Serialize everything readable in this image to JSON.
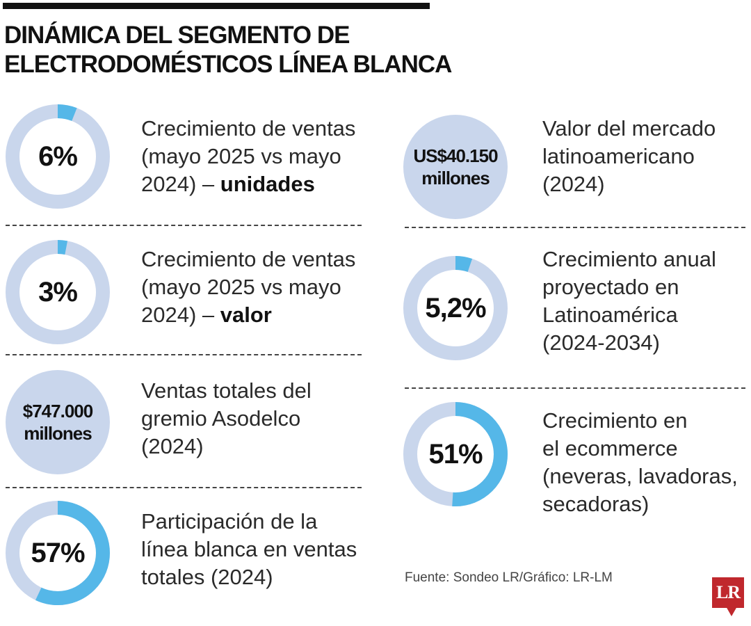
{
  "header": {
    "title_line1": "DINÁMICA DEL SEGMENTO DE",
    "title_line2": "ELECTRODOMÉSTICOS LÍNEA BLANCA"
  },
  "chart_data": {
    "type": "pie",
    "title": "DINÁMICA DEL SEGMENTO DE ELECTRODOMÉSTICOS LÍNEA BLANCA",
    "colors": {
      "fill": "#55b7e8",
      "track": "#c9d6ec",
      "disc": "#c9d6ec"
    },
    "items": [
      {
        "kind": "donut",
        "value": 6,
        "label": "6%",
        "desc_lines": [
          "Crecimiento de ventas",
          "(mayo 2025 vs mayo"
        ],
        "desc_last_prefix": "2024) – ",
        "desc_last_bold": "unidades"
      },
      {
        "kind": "donut",
        "value": 3,
        "label": "3%",
        "desc_lines": [
          "Crecimiento de ventas",
          "(mayo 2025 vs mayo"
        ],
        "desc_last_prefix": "2024) – ",
        "desc_last_bold": "valor"
      },
      {
        "kind": "disc",
        "value_line1": "$747.000",
        "value_line2": "millones",
        "desc_lines": [
          "Ventas totales del",
          "gremio Asodelco",
          "(2024)"
        ]
      },
      {
        "kind": "donut",
        "value": 57,
        "label": "57%",
        "desc_lines": [
          "Participación de la",
          "línea blanca en ventas",
          "totales (2024)"
        ]
      },
      {
        "kind": "disc",
        "value_line1": "US$40.150",
        "value_line2": "millones",
        "desc_lines": [
          "Valor del mercado",
          "latinoamericano",
          "(2024)"
        ]
      },
      {
        "kind": "donut",
        "value": 5.2,
        "label": "5,2%",
        "desc_lines": [
          "Crecimiento anual",
          "proyectado en",
          "Latinoamérica",
          "(2024-2034)"
        ]
      },
      {
        "kind": "donut",
        "value": 51,
        "label": "51%",
        "desc_lines": [
          "Crecimiento en",
          "el ecommerce",
          "(neveras, lavadoras,",
          "secadoras)"
        ]
      }
    ]
  },
  "footer": {
    "source": "Fuente: Sondeo LR/Gráfico: LR-LM",
    "logo_text": "LR"
  }
}
